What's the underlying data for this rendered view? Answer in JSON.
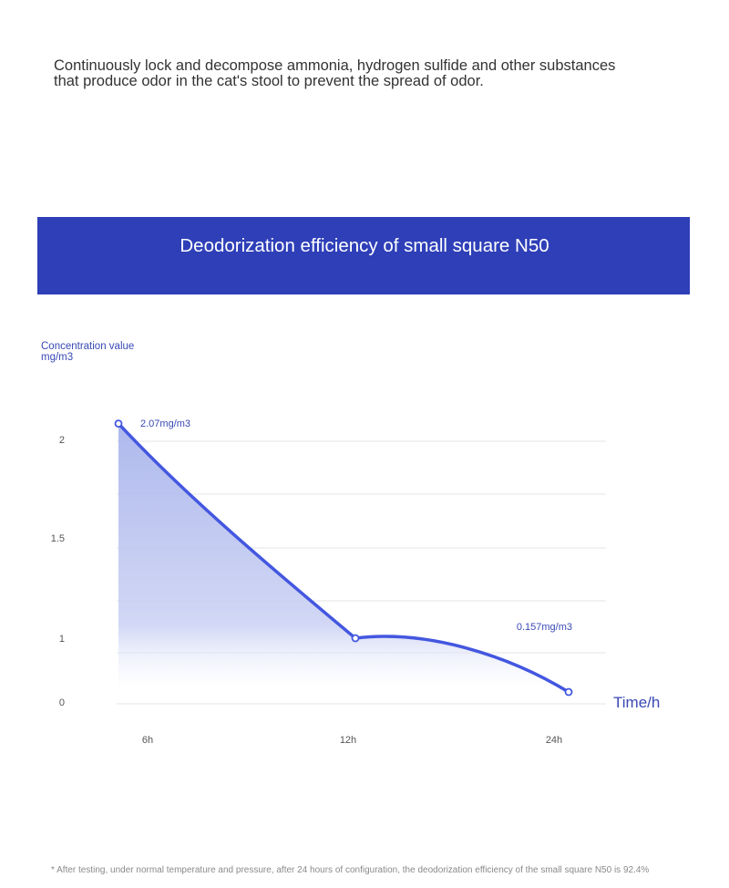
{
  "intro_text": "Continuously lock and decompose ammonia, hydrogen sulfide and other substances that produce odor in the cat's stool to prevent the spread of odor.",
  "banner_title": "Deodorization efficiency of small square N50",
  "colors": {
    "banner": "#2e3fb8",
    "line": "#4457e0",
    "area": "#b9c2ee",
    "label": "#3949b5",
    "grid": "#e6e6e6",
    "tick": "#555555"
  },
  "chart_data": {
    "type": "area",
    "title": "Deodorization efficiency of small square N50",
    "ylabel": "Concentration value mg/m3",
    "xlabel": "Time/h",
    "yticks": [
      "2",
      "1.5",
      "1",
      "0"
    ],
    "x": [
      "6h",
      "12h",
      "24h"
    ],
    "series": [
      {
        "values": [
          2.07,
          1.0,
          0.157
        ]
      }
    ],
    "annotations": [
      {
        "x": "6h",
        "text": "2.07mg/m3"
      },
      {
        "x": "24h",
        "text": "0.157mg/m3"
      }
    ],
    "grid": true,
    "legend": "none"
  },
  "footnote": "* After testing, under normal temperature and pressure, after 24 hours of configuration, the deodorization efficiency of the small square N50 is 92.4%"
}
